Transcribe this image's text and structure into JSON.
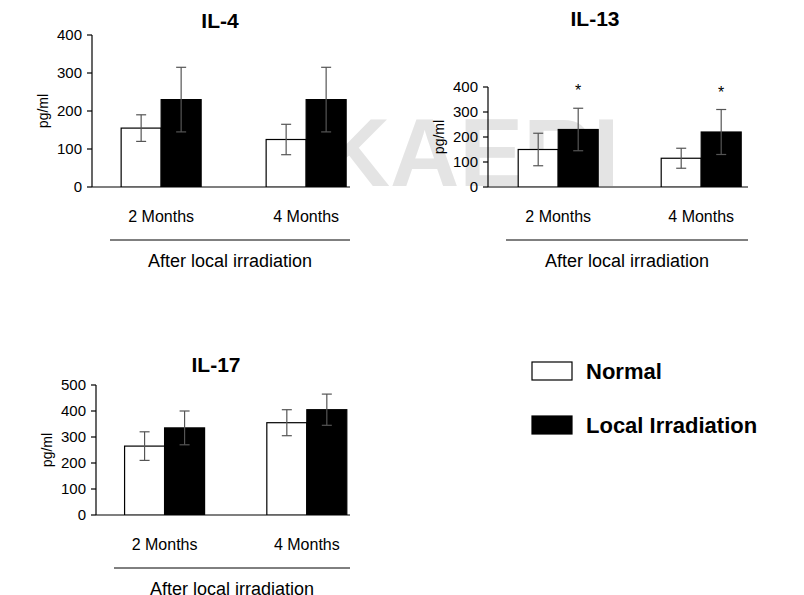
{
  "watermark": "KAERI",
  "chart_data": [
    {
      "type": "bar",
      "title": "IL-4",
      "y_label": "pg/ml",
      "x_label": "After local irradiation",
      "categories": [
        "2 Months",
        "4 Months"
      ],
      "ylim": [
        0,
        400
      ],
      "yticks": [
        0,
        100,
        200,
        300,
        400
      ],
      "series": [
        {
          "name": "Normal",
          "color": "#ffffff",
          "values": [
            155,
            125
          ],
          "errors": [
            35,
            40
          ]
        },
        {
          "name": "Local Irradiation",
          "color": "#000000",
          "values": [
            230,
            230
          ],
          "errors": [
            85,
            85
          ]
        }
      ]
    },
    {
      "type": "bar",
      "title": "IL-13",
      "y_label": "pg/ml",
      "x_label": "After local irradiation",
      "categories": [
        "2 Months",
        "4 Months"
      ],
      "ylim": [
        0,
        400
      ],
      "yticks": [
        0,
        100,
        200,
        300,
        400
      ],
      "series": [
        {
          "name": "Normal",
          "color": "#ffffff",
          "values": [
            150,
            115
          ],
          "errors": [
            65,
            40
          ]
        },
        {
          "name": "Local Irradiation",
          "color": "#000000",
          "values": [
            230,
            220
          ],
          "errors": [
            85,
            90
          ],
          "annotations": [
            "*",
            "*"
          ]
        }
      ]
    },
    {
      "type": "bar",
      "title": "IL-17",
      "y_label": "pg/ml",
      "x_label": "After local irradiation",
      "categories": [
        "2 Months",
        "4 Months"
      ],
      "ylim": [
        0,
        500
      ],
      "yticks": [
        0,
        100,
        200,
        300,
        400,
        500
      ],
      "legend": "right",
      "series": [
        {
          "name": "Normal",
          "color": "#ffffff",
          "values": [
            265,
            355
          ],
          "errors": [
            55,
            50
          ]
        },
        {
          "name": "Local Irradiation",
          "color": "#000000",
          "values": [
            335,
            405
          ],
          "errors": [
            65,
            60
          ]
        }
      ]
    }
  ]
}
